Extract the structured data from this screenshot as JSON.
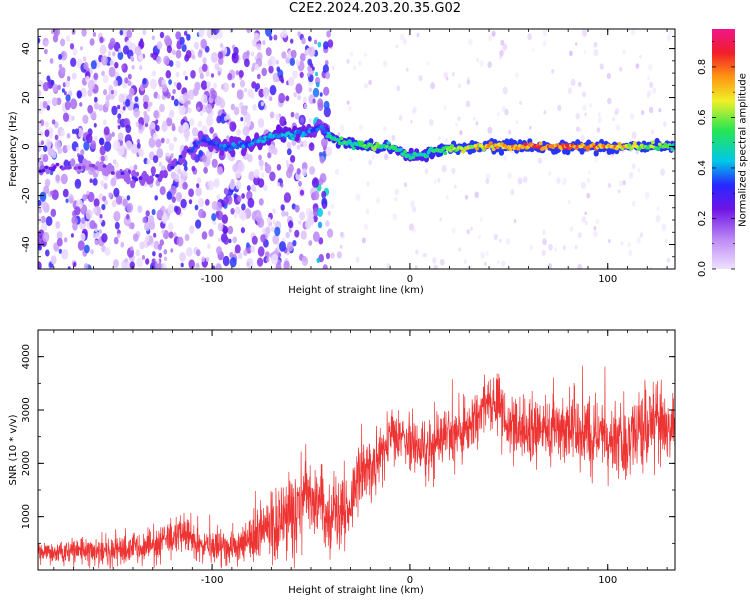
{
  "title": "C2E2.2024.203.20.35.G02",
  "chart_data": [
    {
      "type": "heatmap",
      "xlabel": "Height of straight line (km)",
      "ylabel": "Frequency (Hz)",
      "xlim": [
        -188,
        134
      ],
      "ylim": [
        -50,
        48
      ],
      "xticks": [
        -100,
        0,
        100
      ],
      "yticks": [
        -40,
        -20,
        0,
        20,
        40
      ],
      "colorbar": {
        "label": "Normalized spectral amplitude",
        "range": [
          0,
          0.95
        ],
        "ticks": [
          0.0,
          0.2,
          0.4,
          0.6,
          0.8
        ],
        "colormap": "rainbow (white-lavender to purple, blue, cyan, green, yellow, orange, red, magenta)"
      },
      "ridge": {
        "x": [
          -188,
          -180,
          -160,
          -140,
          -125,
          -105,
          -95,
          -80,
          -70,
          -60,
          -50,
          -45,
          -40,
          -30,
          -20,
          -10,
          0,
          5,
          10,
          20,
          40,
          60,
          80,
          100,
          120,
          134
        ],
        "y": [
          -10,
          -9,
          -8,
          -13,
          -12,
          3,
          0,
          1,
          4,
          5,
          6,
          8,
          4,
          1,
          0,
          0,
          -4,
          -4,
          -2,
          -1,
          0,
          0,
          0,
          0,
          0,
          0
        ],
        "amplitude": [
          0.3,
          0.25,
          0.2,
          0.3,
          0.35,
          0.35,
          0.4,
          0.4,
          0.45,
          0.45,
          0.4,
          0.35,
          0.55,
          0.55,
          0.6,
          0.55,
          0.5,
          0.5,
          0.55,
          0.65,
          0.75,
          0.85,
          0.85,
          0.8,
          0.65,
          0.55
        ]
      }
    },
    {
      "type": "line",
      "color": "#ee3333",
      "xlabel": "Height of straight line (km)",
      "ylabel": "SNR (10 * v/v)",
      "xlim": [
        -188,
        134
      ],
      "ylim": [
        0,
        4500
      ],
      "xticks": [
        -100,
        0,
        100
      ],
      "yticks": [
        1000,
        2000,
        3000,
        4000
      ],
      "x": [
        -188,
        -170,
        -150,
        -130,
        -115,
        -100,
        -85,
        -75,
        -60,
        -50,
        -45,
        -40,
        -30,
        -25,
        -20,
        -15,
        -10,
        -5,
        0,
        10,
        20,
        30,
        35,
        40,
        50,
        60,
        70,
        80,
        90,
        100,
        110,
        120,
        125,
        130,
        134
      ],
      "y": [
        300,
        350,
        350,
        450,
        700,
        400,
        450,
        700,
        1000,
        1400,
        1300,
        900,
        1200,
        1900,
        1800,
        2200,
        2400,
        2500,
        2400,
        2200,
        2600,
        2700,
        3000,
        3300,
        2700,
        2600,
        2600,
        2700,
        2500,
        2500,
        2500,
        2600,
        3000,
        2600,
        2700
      ],
      "noise": [
        200,
        250,
        300,
        350,
        400,
        400,
        400,
        600,
        900,
        900,
        800,
        700,
        600,
        700,
        700,
        700,
        700,
        600,
        600,
        600,
        600,
        600,
        600,
        500,
        600,
        600,
        600,
        700,
        700,
        700,
        800,
        900,
        900,
        800,
        700
      ]
    }
  ]
}
